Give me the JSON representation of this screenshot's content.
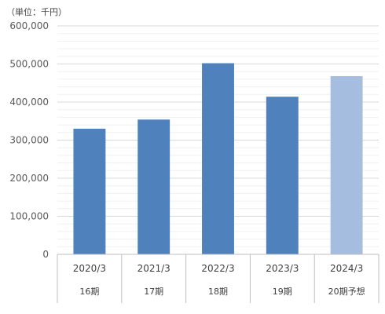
{
  "chart_data": {
    "type": "bar",
    "unit_label": "（単位：千円）",
    "categories": [
      "2020/3",
      "2021/3",
      "2022/3",
      "2023/3",
      "2024/3"
    ],
    "sub_categories": [
      "16期",
      "17期",
      "18期",
      "19期",
      "20期予想"
    ],
    "values": [
      330000,
      354000,
      502000,
      414000,
      468000
    ],
    "forecast_index": 4,
    "ylim": [
      0,
      600000
    ],
    "yticks": [
      0,
      100000,
      200000,
      300000,
      400000,
      500000,
      600000
    ],
    "ytick_labels": [
      "0",
      "100,000",
      "200,000",
      "300,000",
      "400,000",
      "500,000",
      "600,000"
    ],
    "minor_step": 20000,
    "grid": true,
    "legend": "none",
    "colors": {
      "actual": "#4f81bd",
      "forecast": "#a5bedf",
      "major_grid": "#d9d9d9",
      "minor_grid": "#f0f0f0",
      "axis": "#bfbfbf"
    }
  }
}
